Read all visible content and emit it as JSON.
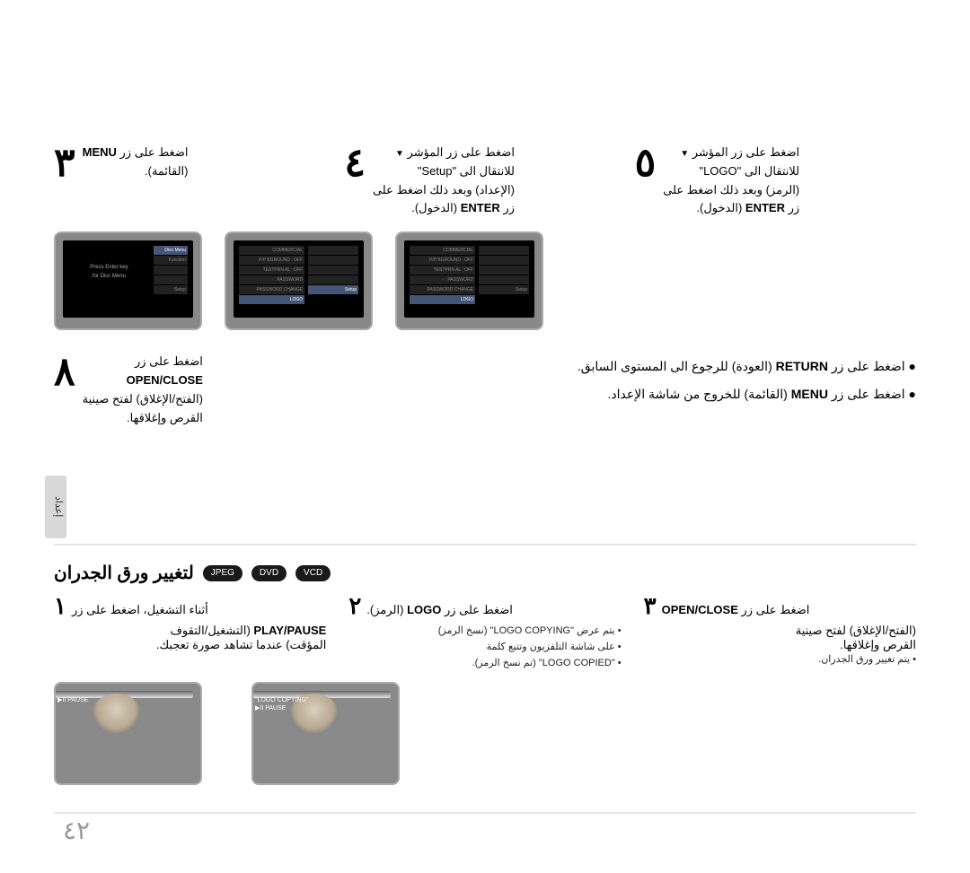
{
  "steps_top": {
    "s3": {
      "num": "٣",
      "line1": "اضغط على زر ",
      "bold": "MENU",
      "line2": "(القائمة)."
    },
    "s4": {
      "num": "٤",
      "line1": "اضغط على زر المؤشر ",
      "line2": "للانتقال الى \"Setup\"",
      "line3": "(الإعداد) وبعد ذلك اضغط على",
      "line4": "زر ",
      "bold": "ENTER",
      "line5": " (الدخول)."
    },
    "s5": {
      "num": "٥",
      "line1": "اضغط على زر المؤشر ",
      "line2": "للانتقال الى \"LOGO\"",
      "line3": "(الرمز) وبعد ذلك اضغط على",
      "line4": "زر ",
      "bold": "ENTER",
      "line5": " (الدخول)."
    },
    "s8": {
      "num": "٨",
      "line1": "اضغط على زر",
      "bold": "OPEN/CLOSE",
      "line2": "(الفتح/الإغلاق) لفتح صينية",
      "line3": "القرص وإغلاقها."
    }
  },
  "bullets": {
    "b1a": "اضغط على زر ",
    "b1b": "RETURN",
    "b1c": " (العودة) للرجوع الى المستوى السابق.",
    "b2a": "اضغط على زر ",
    "b2b": "MENU",
    "b2c": " (القائمة) للخروج من شاشة الإعداد."
  },
  "tv_menu": {
    "left_items": [
      "Disc Menu",
      "Function",
      "",
      "",
      "Setup"
    ],
    "center_msg": "Press Enter key\nfor Disc Menu",
    "setup_items": [
      "COMMERCIAL",
      "P/P BGROUND : OFF",
      "TESTPRN AL : OFF",
      "PASSWORD : -",
      "PASSWORD CHANGE",
      "LOGO"
    ]
  },
  "side_tab": "إعداد",
  "lower": {
    "title": "لتغيير ورق الجدران",
    "badges": [
      "JPEG",
      "DVD",
      "VCD"
    ],
    "s1": {
      "num": "١",
      "head": "أثناء التشغيل، اضغط على زر",
      "bold": "PLAY/PAUSE",
      "cont": " (التشغيل/التقوف",
      "line2": "المؤقت) عندما تشاهد صورة تعجبك."
    },
    "s2": {
      "num": "٢",
      "head": "اضغط على زر ",
      "bold": "LOGO",
      "cont": " (الرمز).",
      "li1": "يتم عرض \"LOGO COPYING\" (نسخ الرمز)",
      "li2": "على شاشة التلفزيون وتتبع كلمة",
      "li3": "\"LOGO COPIED\" (تم نسخ الرمز)."
    },
    "s3": {
      "num": "٣",
      "head": "اضغط على زر ",
      "bold": "OPEN/CLOSE",
      "line2": "(الفتح/الإغلاق) لفتح صينية",
      "line3": "القرص وإغلاقها.",
      "li1": "يتم تغيير ورق الجدران."
    }
  },
  "baby_labels": {
    "a": "▶II PAUSE",
    "b": "\"LOGO COPYING\"\n▶II PAUSE"
  },
  "page_num": "٤٢"
}
